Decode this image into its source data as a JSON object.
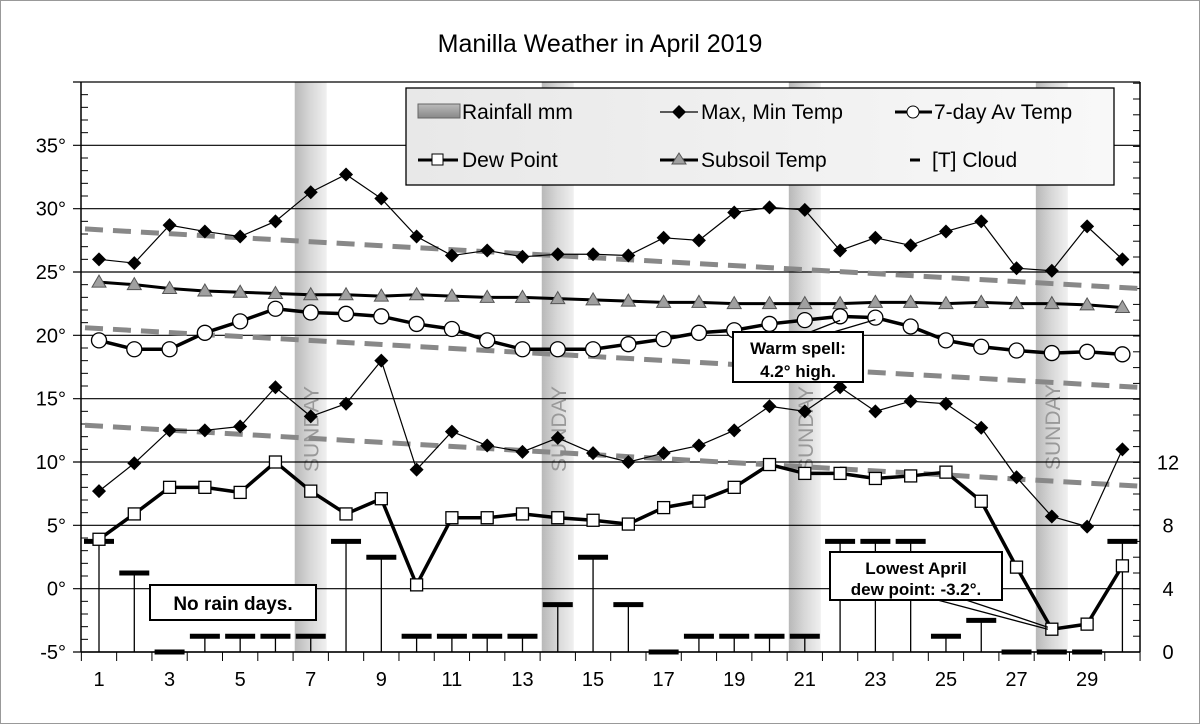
{
  "chart_data": {
    "type": "line",
    "title": "Manilla Weather in April 2019",
    "x": [
      1,
      2,
      3,
      4,
      5,
      6,
      7,
      8,
      9,
      10,
      11,
      12,
      13,
      14,
      15,
      16,
      17,
      18,
      19,
      20,
      21,
      22,
      23,
      24,
      25,
      26,
      27,
      28,
      29,
      30
    ],
    "x_tick_labels": [
      "1",
      "3",
      "5",
      "7",
      "9",
      "11",
      "13",
      "15",
      "17",
      "19",
      "21",
      "23",
      "25",
      "27",
      "29"
    ],
    "y_left": {
      "range": [
        -5,
        40
      ],
      "tick_labels": [
        "-5°",
        "0°",
        "5°",
        "10°",
        "15°",
        "20°",
        "25°",
        "30°",
        "35°"
      ],
      "grid": true
    },
    "y_right": {
      "range": [
        0,
        36
      ],
      "tick_labels": [
        "0",
        "4",
        "8",
        "12"
      ]
    },
    "sundays": [
      7,
      14,
      21,
      28
    ],
    "sunday_label": "SUNDAY",
    "series": [
      {
        "name": "Max, Min Temp",
        "key": "max",
        "values": [
          26.0,
          25.7,
          28.7,
          28.2,
          27.8,
          29.0,
          31.3,
          32.7,
          30.8,
          27.8,
          26.3,
          26.7,
          26.2,
          26.4,
          26.4,
          26.3,
          27.7,
          27.5,
          29.7,
          30.1,
          29.9,
          26.7,
          27.7,
          27.1,
          28.2,
          29.0,
          25.3,
          25.1,
          28.6,
          26.0
        ]
      },
      {
        "name": "Max, Min Temp",
        "key": "min",
        "values": [
          7.7,
          9.9,
          12.5,
          12.5,
          12.8,
          15.9,
          13.6,
          14.6,
          18.0,
          9.4,
          12.4,
          11.3,
          10.8,
          11.9,
          10.7,
          10.0,
          10.7,
          11.3,
          12.5,
          14.4,
          14.0,
          15.9,
          14.0,
          14.8,
          14.6,
          12.7,
          8.8,
          5.7,
          4.9,
          11.0
        ]
      },
      {
        "name": "7-day Av Temp",
        "key": "avg",
        "values": [
          19.6,
          18.9,
          18.9,
          20.2,
          21.1,
          22.1,
          21.8,
          21.7,
          21.5,
          20.9,
          20.5,
          19.6,
          18.9,
          18.9,
          18.9,
          19.3,
          19.7,
          20.2,
          20.4,
          20.9,
          21.2,
          21.5,
          21.4,
          20.7,
          19.6,
          19.1,
          18.8,
          18.6,
          18.7,
          18.5
        ]
      },
      {
        "name": "Dew Point",
        "key": "dew",
        "values": [
          3.9,
          5.9,
          8.0,
          8.0,
          7.6,
          10.0,
          7.7,
          5.9,
          7.1,
          0.3,
          5.6,
          5.6,
          5.9,
          5.6,
          5.4,
          5.1,
          6.4,
          6.9,
          8.0,
          9.8,
          9.1,
          9.1,
          8.7,
          8.9,
          9.2,
          6.9,
          1.7,
          -3.2,
          -2.8,
          1.8
        ]
      },
      {
        "name": "Subsoil Temp",
        "key": "subsoil",
        "values": [
          24.2,
          24.0,
          23.7,
          23.5,
          23.4,
          23.3,
          23.2,
          23.2,
          23.1,
          23.2,
          23.1,
          23.0,
          23.0,
          22.9,
          22.8,
          22.7,
          22.6,
          22.6,
          22.5,
          22.5,
          22.5,
          22.5,
          22.6,
          22.6,
          22.5,
          22.6,
          22.5,
          22.5,
          22.4,
          22.2
        ]
      },
      {
        "name": "[T] Cloud",
        "key": "cloud",
        "axis": "right",
        "values": [
          7,
          5,
          0,
          1,
          1,
          1,
          1,
          7,
          6,
          1,
          1,
          1,
          1,
          3,
          6,
          3,
          0,
          1,
          1,
          1,
          1,
          7,
          7,
          7,
          1,
          2,
          0,
          0,
          0,
          7
        ]
      },
      {
        "name": "Rainfall mm",
        "key": "rain",
        "values": [
          0,
          0,
          0,
          0,
          0,
          0,
          0,
          0,
          0,
          0,
          0,
          0,
          0,
          0,
          0,
          0,
          0,
          0,
          0,
          0,
          0,
          0,
          0,
          0,
          0,
          0,
          0,
          0,
          0,
          0
        ]
      }
    ],
    "trend_lines": [
      {
        "of": "max",
        "start": 28.4,
        "end": 23.7
      },
      {
        "of": "avg",
        "start": 20.6,
        "end": 15.9
      },
      {
        "of": "min",
        "start": 12.9,
        "end": 8.1
      }
    ],
    "legend": {
      "placement": "top-right",
      "items": [
        "Rainfall mm",
        "Max, Min Temp",
        "7-day Av Temp",
        "Dew Point",
        "Subsoil Temp",
        "[T] Cloud"
      ]
    },
    "annotations": [
      {
        "key": "warm",
        "lines": [
          "Warm spell:",
          "4.2° high."
        ],
        "points_to": [
          {
            "series": "avg",
            "day": 22
          },
          {
            "series": "avg",
            "day": 23
          }
        ]
      },
      {
        "key": "dew",
        "lines": [
          "Lowest April",
          "dew point: -3.2°."
        ],
        "points_to": [
          {
            "series": "dew",
            "day": 28
          }
        ]
      },
      {
        "key": "norain",
        "lines": [
          "No rain days."
        ],
        "points_to": []
      }
    ],
    "colors": {
      "trend": "#888888",
      "sunday_band": "#c8c8c8",
      "subsoil_marker": "#a0a0a0",
      "lines": "#000000"
    }
  }
}
